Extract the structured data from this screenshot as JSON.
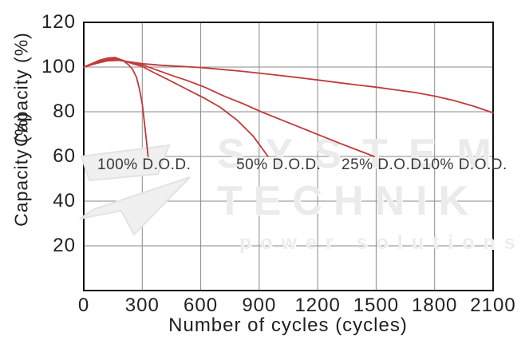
{
  "chart_data": {
    "type": "line",
    "title": "",
    "xlabel": "Number of cycles (cycles)",
    "ylabel": "Capacity (%)",
    "xlim": [
      0,
      2100
    ],
    "ylim": [
      0,
      120
    ],
    "x_ticks": [
      0,
      300,
      600,
      900,
      1200,
      1500,
      1800,
      2100
    ],
    "y_ticks": [
      20,
      40,
      60,
      80,
      100,
      120
    ],
    "grid": true,
    "legend_position": "none",
    "line_color": "#c03a3c",
    "grid_color": "#8a8a8a",
    "frame_color": "#111111",
    "series": [
      {
        "name": "100% D.O.D.",
        "points": [
          [
            0,
            100
          ],
          [
            40,
            101.5
          ],
          [
            80,
            103
          ],
          [
            120,
            104
          ],
          [
            160,
            104.3
          ],
          [
            200,
            103
          ],
          [
            230,
            101
          ],
          [
            250,
            99
          ],
          [
            270,
            95.5
          ],
          [
            285,
            90.5
          ],
          [
            300,
            83.5
          ],
          [
            312,
            74.5
          ],
          [
            322,
            66.5
          ],
          [
            330,
            60
          ]
        ]
      },
      {
        "name": "50% D.O.D.",
        "points": [
          [
            0,
            100
          ],
          [
            50,
            101.5
          ],
          [
            100,
            103
          ],
          [
            150,
            103.8
          ],
          [
            200,
            103
          ],
          [
            250,
            101.5
          ],
          [
            300,
            100.3
          ],
          [
            360,
            97.5
          ],
          [
            430,
            94.5
          ],
          [
            530,
            90
          ],
          [
            620,
            86
          ],
          [
            700,
            82
          ],
          [
            790,
            76
          ],
          [
            870,
            69
          ],
          [
            945,
            60
          ]
        ]
      },
      {
        "name": "25% D.O.D.",
        "points": [
          [
            0,
            100
          ],
          [
            50,
            101.5
          ],
          [
            100,
            102.8
          ],
          [
            160,
            103.4
          ],
          [
            220,
            102.5
          ],
          [
            300,
            101
          ],
          [
            380,
            98.5
          ],
          [
            460,
            96
          ],
          [
            530,
            94
          ],
          [
            620,
            91
          ],
          [
            720,
            87
          ],
          [
            820,
            83.5
          ],
          [
            910,
            80
          ],
          [
            1010,
            76.5
          ],
          [
            1110,
            73
          ],
          [
            1210,
            69.5
          ],
          [
            1310,
            66
          ],
          [
            1400,
            63
          ],
          [
            1490,
            60
          ]
        ]
      },
      {
        "name": "10% D.O.D.",
        "points": [
          [
            0,
            100
          ],
          [
            60,
            101.5
          ],
          [
            120,
            102.8
          ],
          [
            180,
            103
          ],
          [
            240,
            102.3
          ],
          [
            300,
            101.5
          ],
          [
            400,
            100.8
          ],
          [
            500,
            100.3
          ],
          [
            600,
            99.8
          ],
          [
            700,
            99
          ],
          [
            800,
            98.2
          ],
          [
            900,
            97.3
          ],
          [
            1000,
            96.3
          ],
          [
            1100,
            95.3
          ],
          [
            1200,
            94.2
          ],
          [
            1300,
            93.1
          ],
          [
            1400,
            92
          ],
          [
            1500,
            91
          ],
          [
            1600,
            89.8
          ],
          [
            1700,
            88.6
          ],
          [
            1800,
            87
          ],
          [
            1900,
            85
          ],
          [
            2000,
            82.5
          ],
          [
            2100,
            79.5
          ]
        ]
      }
    ],
    "annotations": [
      {
        "text": "100% D.O.D.",
        "cycles": 310,
        "pct": 56
      },
      {
        "text": "50% D.O.D.",
        "cycles": 1000,
        "pct": 56
      },
      {
        "text": "25% D.O.D.",
        "cycles": 1540,
        "pct": 56
      },
      {
        "text": "10% D.O.D.",
        "cycles": 1955,
        "pct": 56
      }
    ]
  },
  "watermark": {
    "line1": "SYSTEM",
    "line2": "TECHNIK",
    "line3": "power solutions"
  }
}
